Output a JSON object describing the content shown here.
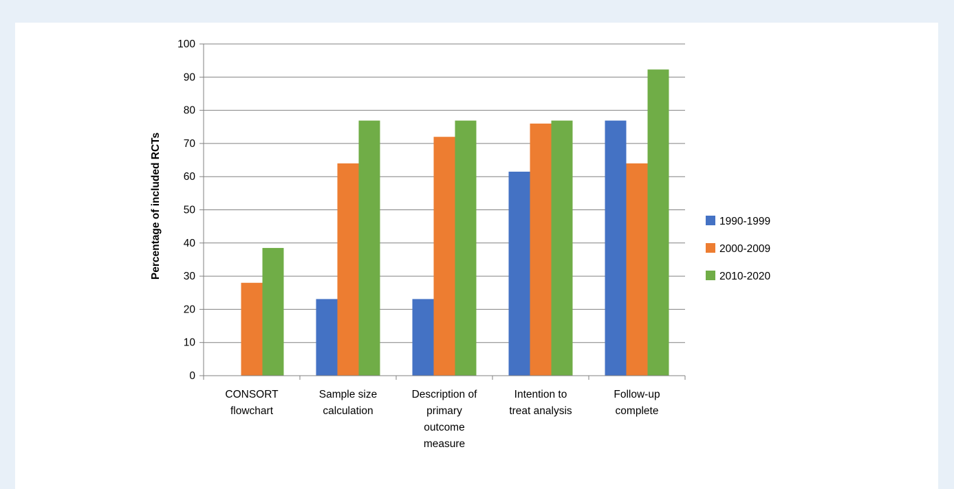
{
  "chart_data": {
    "type": "bar",
    "title": "",
    "xlabel": "",
    "ylabel": "Percentage of included RCTs",
    "ylim": [
      0,
      100
    ],
    "yticks": [
      0,
      10,
      20,
      30,
      40,
      50,
      60,
      70,
      80,
      90,
      100
    ],
    "grid": true,
    "legend_position": "right",
    "categories": [
      [
        "CONSORT",
        "flowchart"
      ],
      [
        "Sample size",
        "calculation"
      ],
      [
        "Description of",
        "primary",
        "outcome",
        "measure"
      ],
      [
        "Intention to",
        "treat analysis"
      ],
      [
        "Follow-up",
        "complete"
      ]
    ],
    "series": [
      {
        "name": "1990-1999",
        "color": "#4472c4",
        "values": [
          0,
          23.1,
          23.1,
          61.5,
          76.9
        ]
      },
      {
        "name": "2000-2009",
        "color": "#ed7d31",
        "values": [
          28,
          64,
          72,
          76,
          64
        ]
      },
      {
        "name": "2010-2020",
        "color": "#70ad47",
        "values": [
          38.5,
          76.9,
          76.9,
          76.9,
          92.3
        ]
      }
    ]
  },
  "colors": {
    "page_background": "#e8f0f8",
    "panel_background": "#ffffff",
    "gridline": "#808080"
  }
}
